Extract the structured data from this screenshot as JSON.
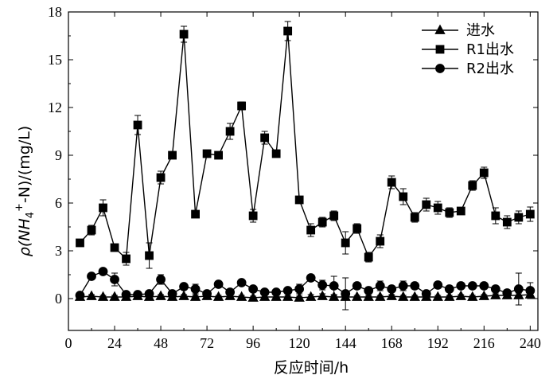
{
  "chart_data": {
    "type": "line",
    "xlabel": "反应时间/h",
    "ylabel": "ρ(NH4+-N)/(mg/L)",
    "ylabel_parts": {
      "prefix": "ρ(NH",
      "sub": "4",
      "sup": "+",
      "suffix": "-N)/(mg/L)"
    },
    "xlim": [
      0,
      244
    ],
    "ylim": [
      -2,
      18
    ],
    "xticks": [
      0,
      24,
      48,
      72,
      96,
      120,
      144,
      168,
      192,
      216,
      240
    ],
    "yticks": [
      0,
      3,
      6,
      9,
      12,
      15,
      18
    ],
    "legend_position": "top-right",
    "series": [
      {
        "name": "进水",
        "marker": "triangle",
        "x": [
          6,
          12,
          18,
          24,
          30,
          36,
          42,
          48,
          54,
          60,
          66,
          72,
          78,
          84,
          90,
          96,
          102,
          108,
          114,
          120,
          126,
          132,
          138,
          144,
          150,
          156,
          162,
          168,
          174,
          180,
          186,
          192,
          198,
          204,
          210,
          216,
          222,
          228,
          234,
          240
        ],
        "values": [
          0.1,
          0.15,
          0.1,
          0.1,
          0.1,
          0.15,
          0.1,
          0.15,
          0.1,
          0.15,
          0.1,
          0.15,
          0.1,
          0.15,
          0.1,
          0.05,
          0.1,
          0.1,
          0.1,
          0.05,
          0.1,
          0.15,
          0.1,
          0.1,
          0.1,
          0.1,
          0.1,
          0.15,
          0.1,
          0.1,
          0.1,
          0.1,
          0.1,
          0.15,
          0.1,
          0.15,
          0.2,
          0.2,
          0.2,
          0.25
        ],
        "errors": [
          0.1,
          0.1,
          0.1,
          0.1,
          0.1,
          0.1,
          0.1,
          0.1,
          0.1,
          0.1,
          0.1,
          0.1,
          0.1,
          0.1,
          0.1,
          0.1,
          0.1,
          0.1,
          0.1,
          0.1,
          0.15,
          0.15,
          0.15,
          0.15,
          0.1,
          0.1,
          0.1,
          0.1,
          0.1,
          0.1,
          0.1,
          0.1,
          0.1,
          0.1,
          0.1,
          0.1,
          0.1,
          0.1,
          0.15,
          0.15
        ]
      },
      {
        "name": "R1出水",
        "marker": "square",
        "x": [
          6,
          12,
          18,
          24,
          30,
          36,
          42,
          48,
          54,
          60,
          66,
          72,
          78,
          84,
          90,
          96,
          102,
          108,
          114,
          120,
          126,
          132,
          138,
          144,
          150,
          156,
          162,
          168,
          174,
          180,
          186,
          192,
          198,
          204,
          210,
          216,
          222,
          228,
          234,
          240
        ],
        "values": [
          3.5,
          4.3,
          5.7,
          3.2,
          2.5,
          10.9,
          2.7,
          7.6,
          9.0,
          16.6,
          5.3,
          9.1,
          9.0,
          10.5,
          12.1,
          5.2,
          10.1,
          9.1,
          16.8,
          6.2,
          4.3,
          4.8,
          5.2,
          3.5,
          4.4,
          2.6,
          3.6,
          7.3,
          6.4,
          5.1,
          5.9,
          5.7,
          5.4,
          5.5,
          7.1,
          7.9,
          5.2,
          4.8,
          5.1,
          5.3
        ],
        "errors": [
          0.15,
          0.3,
          0.5,
          0.2,
          0.4,
          0.6,
          0.8,
          0.4,
          0.2,
          0.5,
          0.2,
          0.2,
          0.2,
          0.5,
          0.25,
          0.4,
          0.4,
          0.2,
          0.6,
          0.2,
          0.4,
          0.3,
          0.3,
          0.7,
          0.3,
          0.3,
          0.4,
          0.4,
          0.5,
          0.3,
          0.4,
          0.4,
          0.3,
          0.2,
          0.3,
          0.35,
          0.5,
          0.4,
          0.4,
          0.45
        ]
      },
      {
        "name": "R2出水",
        "marker": "circle",
        "x": [
          6,
          12,
          18,
          24,
          30,
          36,
          42,
          48,
          54,
          60,
          66,
          72,
          78,
          84,
          90,
          96,
          102,
          108,
          114,
          120,
          126,
          132,
          138,
          144,
          150,
          156,
          162,
          168,
          174,
          180,
          186,
          192,
          198,
          204,
          210,
          216,
          222,
          228,
          234,
          240
        ],
        "values": [
          0.2,
          1.4,
          1.7,
          1.2,
          0.25,
          0.25,
          0.3,
          1.2,
          0.3,
          0.75,
          0.6,
          0.3,
          0.9,
          0.4,
          1.0,
          0.6,
          0.4,
          0.4,
          0.5,
          0.6,
          1.3,
          0.85,
          0.8,
          0.3,
          0.8,
          0.5,
          0.8,
          0.6,
          0.8,
          0.8,
          0.3,
          0.85,
          0.6,
          0.8,
          0.8,
          0.8,
          0.6,
          0.35,
          0.6,
          0.5
        ],
        "errors": [
          0.1,
          0.15,
          0.2,
          0.4,
          0.1,
          0.1,
          0.1,
          0.3,
          0.1,
          0.2,
          0.3,
          0.1,
          0.2,
          0.1,
          0.15,
          0.15,
          0.1,
          0.1,
          0.15,
          0.3,
          0.2,
          0.3,
          0.6,
          1.0,
          0.2,
          0.2,
          0.3,
          0.2,
          0.3,
          0.2,
          0.1,
          0.2,
          0.2,
          0.2,
          0.2,
          0.2,
          0.2,
          0.2,
          1.0,
          0.5
        ]
      }
    ]
  }
}
